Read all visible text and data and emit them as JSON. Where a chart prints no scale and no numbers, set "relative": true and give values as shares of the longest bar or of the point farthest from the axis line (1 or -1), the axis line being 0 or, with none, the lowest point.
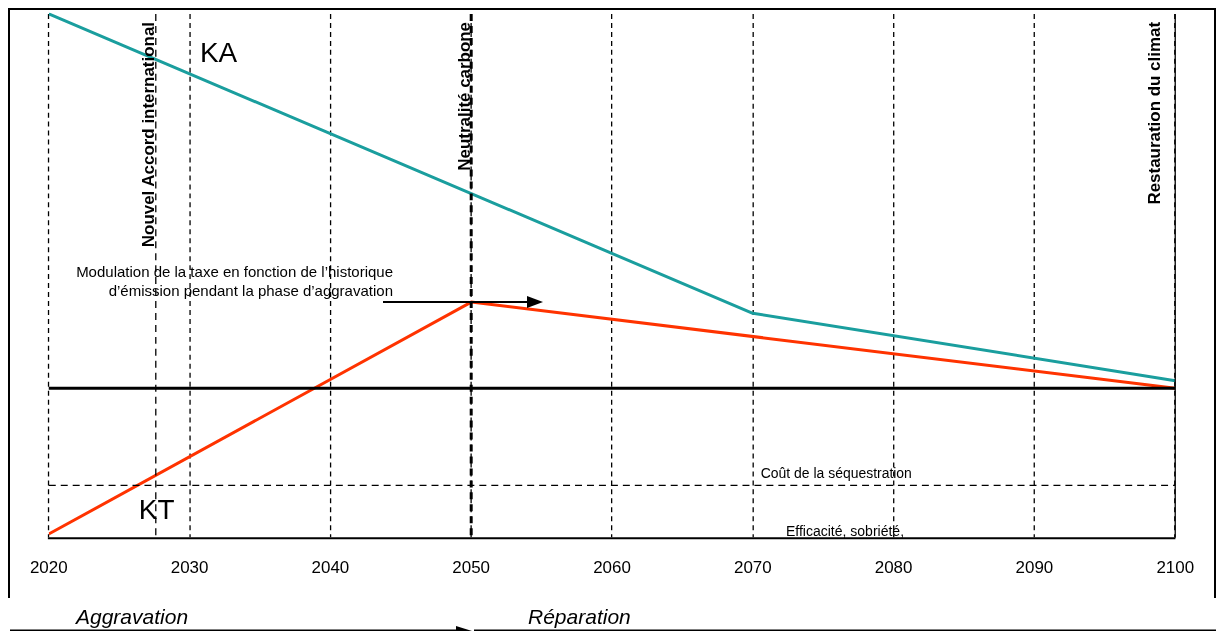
{
  "chart_data": {
    "type": "line",
    "relative": true,
    "xlim": [
      2020,
      2100
    ],
    "xticks": [
      2020,
      2030,
      2040,
      2050,
      2060,
      2070,
      2080,
      2090,
      2100
    ],
    "grid": "x",
    "line_style": "solid",
    "marker": "none",
    "series": [
      {
        "name": "KA",
        "color": "#1a9e9e",
        "x": [
          2020,
          2070,
          2100
        ],
        "values": [
          1,
          0.2,
          0.02
        ]
      },
      {
        "name": "KT",
        "color": "#ff3300",
        "x": [
          2020,
          2050,
          2100
        ],
        "values": [
          -0.39,
          0.23,
          0
        ]
      }
    ],
    "ref_lines": [
      {
        "axis": "x",
        "value": 2027.6,
        "label": "Nouvel Accord international",
        "line_style": "dashed"
      },
      {
        "axis": "x",
        "value": 2050,
        "label": "Neutralité carbone",
        "line_style": "dashed"
      },
      {
        "axis": "x",
        "value": 2100,
        "label": "Restauration du climat"
      },
      {
        "axis": "y",
        "value": -0.26,
        "label": "Coût de la séquestration",
        "line_style": "dashed"
      }
    ],
    "annotations": [
      "Modulation de la taxe en fonction de l’historique d’émission pendant la phase d’aggravation",
      "Efficacité, sobriété,",
      "Aggravation",
      "Réparation"
    ]
  }
}
